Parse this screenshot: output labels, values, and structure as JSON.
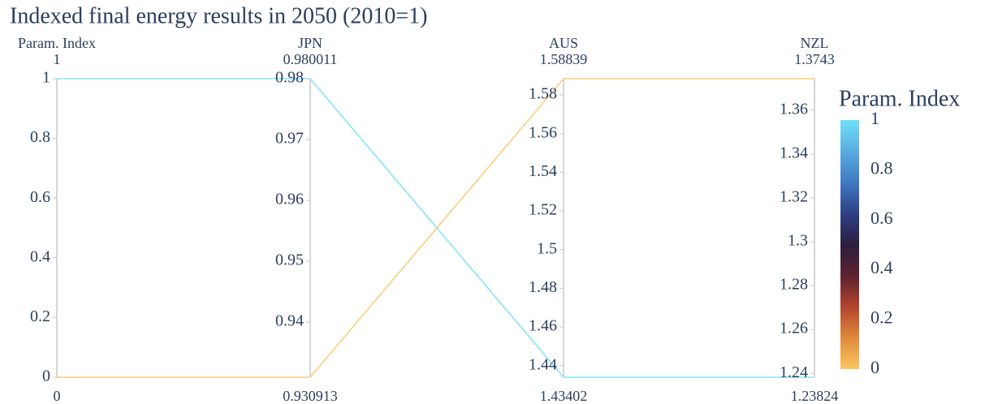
{
  "chart_data": {
    "type": "parcoords",
    "title": "Indexed final energy results in 2050 (2010=1)",
    "colorscale": [
      "#fbc660",
      "#e08a3c",
      "#b2442d",
      "#5d2231",
      "#2b1f3e",
      "#2f3f86",
      "#3f7ac2",
      "#5aace0",
      "#6fe0f8"
    ],
    "color_dimension": 0,
    "dimensions": [
      {
        "label": "Param. Index",
        "range": [
          0,
          1
        ],
        "ticks": [
          0,
          0.2,
          0.4,
          0.6,
          0.8,
          1
        ],
        "values": [
          1,
          0
        ]
      },
      {
        "label": "JPN",
        "range": [
          0.930913,
          0.980011
        ],
        "ticks": [
          0.94,
          0.95,
          0.96,
          0.97,
          0.98
        ],
        "values": [
          0.980011,
          0.930913
        ]
      },
      {
        "label": "AUS",
        "range": [
          1.43402,
          1.58839
        ],
        "ticks": [
          1.44,
          1.46,
          1.48,
          1.5,
          1.52,
          1.54,
          1.56,
          1.58
        ],
        "values": [
          1.43402,
          1.58839
        ]
      },
      {
        "label": "NZL",
        "range": [
          1.23824,
          1.3743
        ],
        "ticks": [
          1.24,
          1.26,
          1.28,
          1.3,
          1.32,
          1.34,
          1.36
        ],
        "values": [
          1.23824,
          1.3743
        ]
      }
    ],
    "colorbar": {
      "title": "Param. Index",
      "clim": [
        0,
        1
      ],
      "ticks": [
        0,
        0.2,
        0.4,
        0.6,
        0.8,
        1
      ]
    }
  }
}
